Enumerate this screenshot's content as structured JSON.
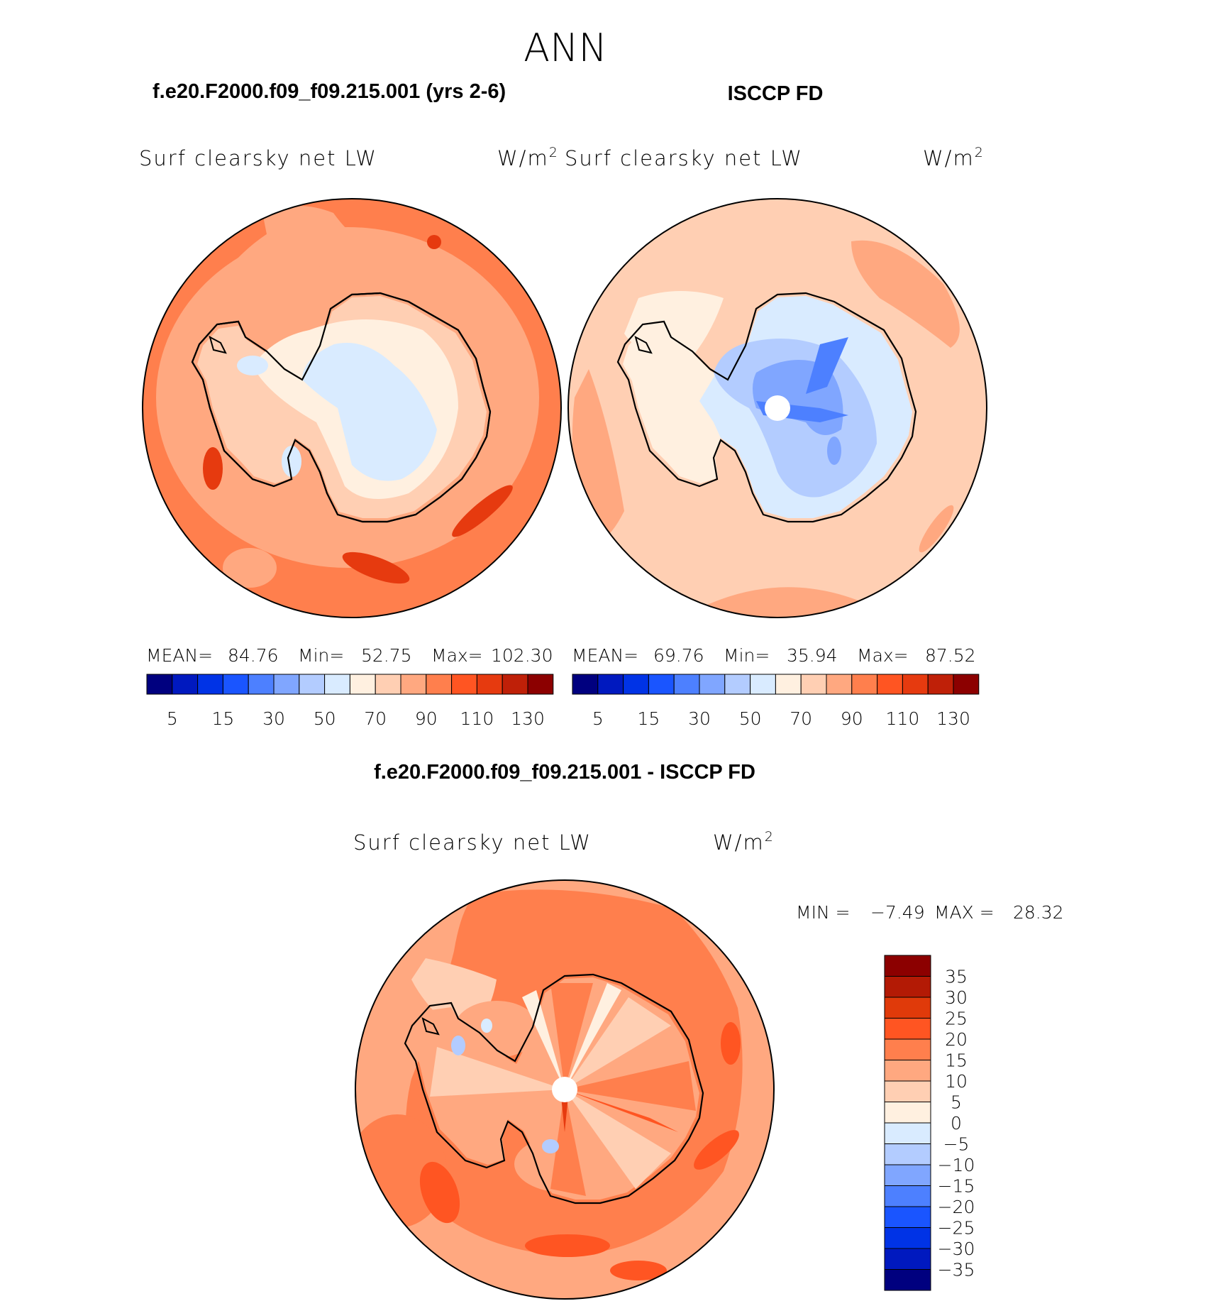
{
  "season": "ANN",
  "panels": {
    "left": {
      "case_title": "f.e20.F2000.f09_f09.215.001 (yrs 2-6)",
      "variable": "Surf clearsky net LW",
      "units_base": "W/m",
      "units_exp": "2",
      "mean_label": "MEAN=",
      "mean": "84.76",
      "min_label": "Min=",
      "min": "52.75",
      "max_label": "Max=",
      "max": "102.30"
    },
    "right": {
      "case_title": "ISCCP FD",
      "variable": "Surf clearsky net LW",
      "units_base": "W/m",
      "units_exp": "2",
      "mean_label": "MEAN=",
      "mean": "69.76",
      "min_label": "Min=",
      "min": "35.94",
      "max_label": "Max=",
      "max": "87.52"
    },
    "diff": {
      "case_title": "f.e20.F2000.f09_f09.215.001 - ISCCP FD",
      "variable": "Surf clearsky net LW",
      "units_base": "W/m",
      "units_exp": "2",
      "min_label": "MIN =",
      "min": "−7.49",
      "max_label": "MAX =",
      "max": "28.32"
    }
  },
  "colorbar_top": {
    "colors": [
      "#00007f",
      "#0019bf",
      "#0033e6",
      "#1a55ff",
      "#4d80ff",
      "#80a6ff",
      "#b3ccff",
      "#d9ebff",
      "#fff0e0",
      "#ffcfb3",
      "#ffa880",
      "#ff7f4d",
      "#ff5522",
      "#e63a0f",
      "#bf2008",
      "#8c0000"
    ],
    "labels": [
      "5",
      "15",
      "30",
      "50",
      "70",
      "90",
      "110",
      "130"
    ]
  },
  "colorbar_diff": {
    "colors": [
      "#8c0000",
      "#b31a05",
      "#e03a0a",
      "#ff5522",
      "#ff7f4d",
      "#ffa880",
      "#ffcfb3",
      "#fff0e0",
      "#d9ebff",
      "#b3ccff",
      "#80a6ff",
      "#4d80ff",
      "#1a55ff",
      "#0033e6",
      "#0019bf",
      "#00007f"
    ],
    "labels": [
      "35",
      "30",
      "25",
      "20",
      "15",
      "10",
      "5",
      "0",
      "−5",
      "−10",
      "−15",
      "−20",
      "−25",
      "−30",
      "−35"
    ]
  }
}
